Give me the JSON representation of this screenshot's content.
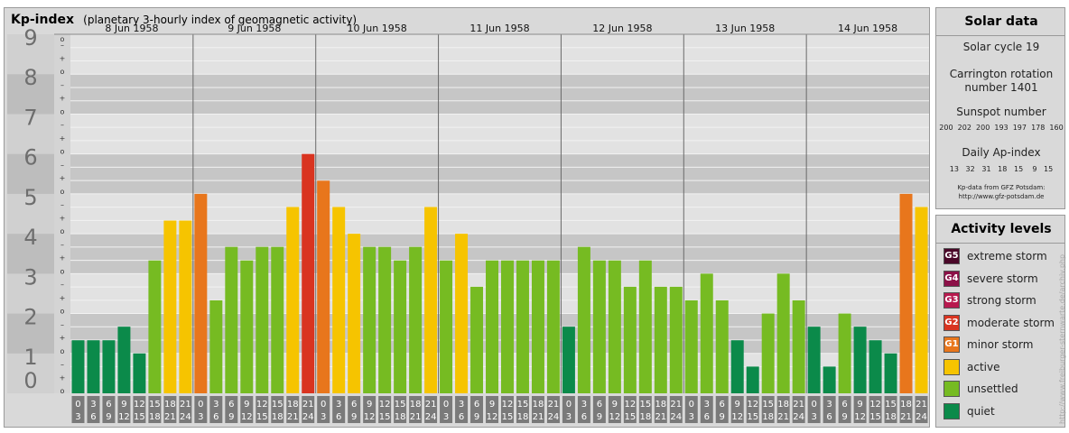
{
  "title": {
    "main": "Kp-index",
    "sub": "(planetary 3-hourly index of geomagnetic activity)"
  },
  "chart_data": {
    "type": "bar",
    "title": "Kp-index",
    "subtitle": "(planetary 3-hourly index of geomagnetic activity)",
    "ylim": [
      0,
      9
    ],
    "y_major_labels": [
      "0",
      "1",
      "2",
      "3",
      "4",
      "5",
      "6",
      "7",
      "8",
      "9"
    ],
    "y_minor_labels": [
      "o",
      "+",
      "–"
    ],
    "days": [
      "8 Jun 1958",
      "9 Jun 1958",
      "10 Jun 1958",
      "11 Jun 1958",
      "12 Jun 1958",
      "13 Jun 1958",
      "14 Jun 1958"
    ],
    "intervals": [
      [
        "0",
        "3"
      ],
      [
        "3",
        "6"
      ],
      [
        "6",
        "9"
      ],
      [
        "9",
        "12"
      ],
      [
        "12",
        "15"
      ],
      [
        "15",
        "18"
      ],
      [
        "18",
        "21"
      ],
      [
        "21",
        "24"
      ]
    ],
    "values": [
      [
        1.33,
        1.33,
        1.33,
        1.67,
        1.0,
        3.33,
        4.33,
        4.33
      ],
      [
        5.0,
        2.33,
        3.67,
        3.33,
        3.67,
        3.67,
        4.67,
        6.0
      ],
      [
        5.33,
        4.67,
        4.0,
        3.67,
        3.67,
        3.33,
        3.67,
        4.67
      ],
      [
        3.33,
        4.0,
        2.67,
        3.33,
        3.33,
        3.33,
        3.33,
        3.33
      ],
      [
        1.67,
        3.67,
        3.33,
        3.33,
        2.67,
        3.33,
        2.67,
        2.67
      ],
      [
        2.33,
        3.0,
        2.33,
        1.33,
        0.67,
        2.0,
        3.0,
        2.33
      ],
      [
        1.67,
        0.67,
        2.0,
        1.67,
        1.33,
        1.0,
        5.0,
        4.67
      ]
    ],
    "colors": {
      "quiet": "#0b8a4a",
      "unsettled": "#76bb22",
      "active": "#f6c400",
      "g1": "#e8761c",
      "g2": "#d93420",
      "g3": "#b8194e",
      "g4": "#8c1148",
      "g5": "#4a0728"
    },
    "grid": true
  },
  "solar": {
    "title": "Solar data",
    "cycle": "Solar cycle 19",
    "carrington_1": "Carrington rotation",
    "carrington_2": "number 1401",
    "sunspot_title": "Sunspot number",
    "sunspot_values": "200  202  200  193  197  178  160",
    "ap_title": "Daily Ap-index",
    "ap_values": "13   32   31   18   15    9   15",
    "source_1": "Kp-data from GFZ Potsdam:",
    "source_2": "http://www.gfz-potsdam.de"
  },
  "activity": {
    "title": "Activity levels",
    "items": [
      {
        "badge": "G5",
        "label": "extreme storm",
        "color": "#4a0728"
      },
      {
        "badge": "G4",
        "label": "severe storm",
        "color": "#8c1148"
      },
      {
        "badge": "G3",
        "label": "strong storm",
        "color": "#b8194e"
      },
      {
        "badge": "G2",
        "label": "moderate storm",
        "color": "#d93420"
      },
      {
        "badge": "G1",
        "label": "minor storm",
        "color": "#e8761c"
      },
      {
        "badge": "",
        "label": "active",
        "color": "#f6c400"
      },
      {
        "badge": "",
        "label": "unsettled",
        "color": "#76bb22"
      },
      {
        "badge": "",
        "label": "quiet",
        "color": "#0b8a4a"
      }
    ]
  },
  "watermark": "http://www.freiburger-sternwarte.de/archiv.php"
}
